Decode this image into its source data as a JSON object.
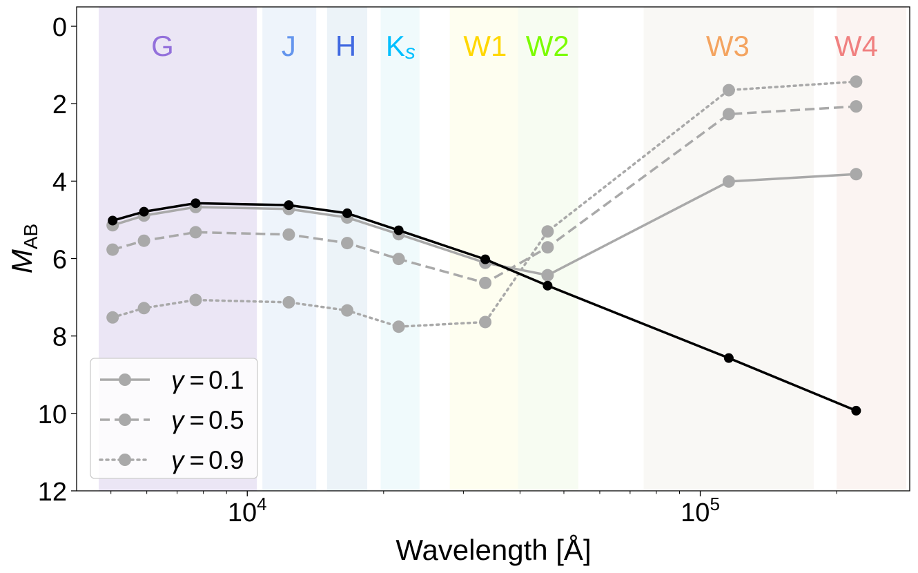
{
  "chart_data": {
    "type": "line",
    "xscale": "log",
    "xlabel": "Wavelength [Å]",
    "ylabel_main": "M",
    "ylabel_sub": "AB",
    "xlim": [
      4200,
      290000
    ],
    "ylim": [
      12,
      -0.5
    ],
    "yticks": [
      0,
      2,
      4,
      6,
      8,
      10,
      12
    ],
    "xticks_major": [
      {
        "value": 10000,
        "base": "10",
        "exp": "4"
      },
      {
        "value": 100000,
        "base": "10",
        "exp": "5"
      }
    ],
    "bands": [
      {
        "label": "G",
        "sub": "",
        "range": [
          4700,
          10500
        ],
        "label_x": 6500,
        "color": "#9370DB",
        "fill": "#ebe6f5"
      },
      {
        "label": "J",
        "sub": "",
        "range": [
          10800,
          14200
        ],
        "label_x": 12350,
        "color": "#6495ED",
        "fill": "#eef4fb"
      },
      {
        "label": "H",
        "sub": "",
        "range": [
          15000,
          18400
        ],
        "label_x": 16500,
        "color": "#4169E1",
        "fill": "#ecf3f8"
      },
      {
        "label": "K",
        "sub": "s",
        "range": [
          19700,
          24000
        ],
        "label_x": 21800,
        "color": "#00BFFF",
        "fill": "#f0fafc"
      },
      {
        "label": "W1",
        "sub": "",
        "range": [
          28000,
          39600
        ],
        "label_x": 33500,
        "color": "#FFD700",
        "fill": "#fefef0"
      },
      {
        "label": "W2",
        "sub": "",
        "range": [
          39600,
          53800
        ],
        "label_x": 46000,
        "color": "#7CFC00",
        "fill": "#f7fcf2"
      },
      {
        "label": "W3",
        "sub": "",
        "range": [
          75000,
          178000
        ],
        "label_x": 115000,
        "color": "#F4A460",
        "fill": "#f9f8f5"
      },
      {
        "label": "W4",
        "sub": "",
        "range": [
          200000,
          285000
        ],
        "label_x": 221000,
        "color": "#F08080",
        "fill": "#fbf4f2"
      }
    ],
    "x": [
      5044,
      5915,
      7692,
      12350,
      16620,
      21590,
      33526,
      46028,
      115608,
      220883
    ],
    "series": [
      {
        "name": "black",
        "color": "#000000",
        "dash": "solid",
        "marker_r": 7,
        "values": [
          5.02,
          4.79,
          4.57,
          4.62,
          4.83,
          5.27,
          6.02,
          6.7,
          8.57,
          9.93
        ]
      },
      {
        "name": "γ = 0.1",
        "gamma": "0.1",
        "color": "#a9a9a9",
        "dash": "solid",
        "marker_r": 9,
        "values": [
          5.14,
          4.89,
          4.67,
          4.72,
          4.94,
          5.37,
          6.11,
          6.43,
          4.01,
          3.82
        ]
      },
      {
        "name": "γ = 0.5",
        "gamma": "0.5",
        "color": "#a9a9a9",
        "dash": "dashed",
        "marker_r": 9,
        "values": [
          5.77,
          5.54,
          5.32,
          5.38,
          5.6,
          6.01,
          6.63,
          5.71,
          2.27,
          2.07
        ]
      },
      {
        "name": "γ = 0.9",
        "gamma": "0.9",
        "color": "#a9a9a9",
        "dash": "dotted",
        "marker_r": 9,
        "values": [
          7.52,
          7.28,
          7.07,
          7.13,
          7.34,
          7.76,
          7.64,
          5.3,
          1.65,
          1.43
        ]
      }
    ],
    "legend": {
      "placement": "lower-left",
      "entries": [
        {
          "symbol": "γ",
          "eq": "=",
          "value": "0.1",
          "dash": "solid"
        },
        {
          "symbol": "γ",
          "eq": "=",
          "value": "0.5",
          "dash": "dashed"
        },
        {
          "symbol": "γ",
          "eq": "=",
          "value": "0.9",
          "dash": "dotted"
        }
      ]
    }
  }
}
